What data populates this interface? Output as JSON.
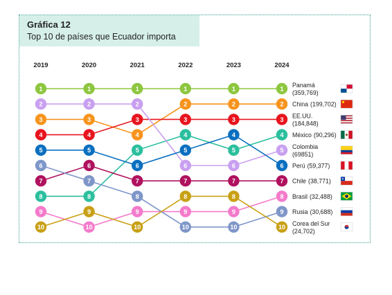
{
  "header": {
    "title": "Gráfica 12",
    "subtitle": "Top 10 de países que Ecuador importa"
  },
  "chart_data": {
    "type": "line",
    "subtype": "bump",
    "x": [
      "2019",
      "2020",
      "2021",
      "2022",
      "2023",
      "2024"
    ],
    "y_reversed": true,
    "ylim": [
      1,
      10
    ],
    "rank_labels": [
      "1",
      "2",
      "3",
      "4",
      "5",
      "6",
      "7",
      "8",
      "9",
      "10"
    ],
    "series": [
      {
        "name": "Panamá",
        "value_label": "(359,769)",
        "color": "#8dc63f",
        "flag": "panama-flag",
        "ranks": [
          1,
          1,
          1,
          1,
          1,
          1
        ]
      },
      {
        "name": "China",
        "value_label": "(199,702)",
        "color": "#f7941d",
        "flag": "china-flag",
        "ranks": [
          3,
          3,
          4,
          2,
          2,
          2
        ]
      },
      {
        "name": "EE.UU.",
        "value_label": "(184,848)",
        "color": "#e8141e",
        "flag": "usa-flag",
        "ranks": [
          4,
          4,
          3,
          3,
          3,
          3
        ]
      },
      {
        "name": "México",
        "value_label": "(90,296)",
        "color": "#2bbf9e",
        "flag": "mexico-flag",
        "ranks": [
          8,
          8,
          5,
          4,
          5,
          4
        ]
      },
      {
        "name": "Colombia",
        "value_label": "(69851)",
        "color": "#c9a0f0",
        "flag": "colombia-flag",
        "ranks": [
          2,
          2,
          2,
          6,
          6,
          5
        ]
      },
      {
        "name": "Perú",
        "value_label": "(59,377)",
        "color": "#0a6fbf",
        "flag": "peru-flag",
        "ranks": [
          5,
          5,
          6,
          5,
          4,
          6
        ]
      },
      {
        "name": "Chile",
        "value_label": "(38,771)",
        "color": "#b0125f",
        "flag": "chile-flag",
        "ranks": [
          7,
          6,
          7,
          7,
          7,
          7
        ]
      },
      {
        "name": "Brasil",
        "value_label": "(32,488)",
        "color": "#f47bcb",
        "flag": "brazil-flag",
        "ranks": [
          9,
          10,
          9,
          9,
          9,
          8
        ]
      },
      {
        "name": "Rusia",
        "value_label": "(30,688)",
        "color": "#7f96c9",
        "flag": "russia-flag",
        "ranks": [
          6,
          7,
          8,
          10,
          10,
          9
        ]
      },
      {
        "name": "Corea del Sur",
        "value_label": "(24,702)",
        "color": "#c8a015",
        "flag": "south-korea-flag",
        "ranks": [
          10,
          9,
          10,
          8,
          8,
          10
        ]
      }
    ]
  }
}
